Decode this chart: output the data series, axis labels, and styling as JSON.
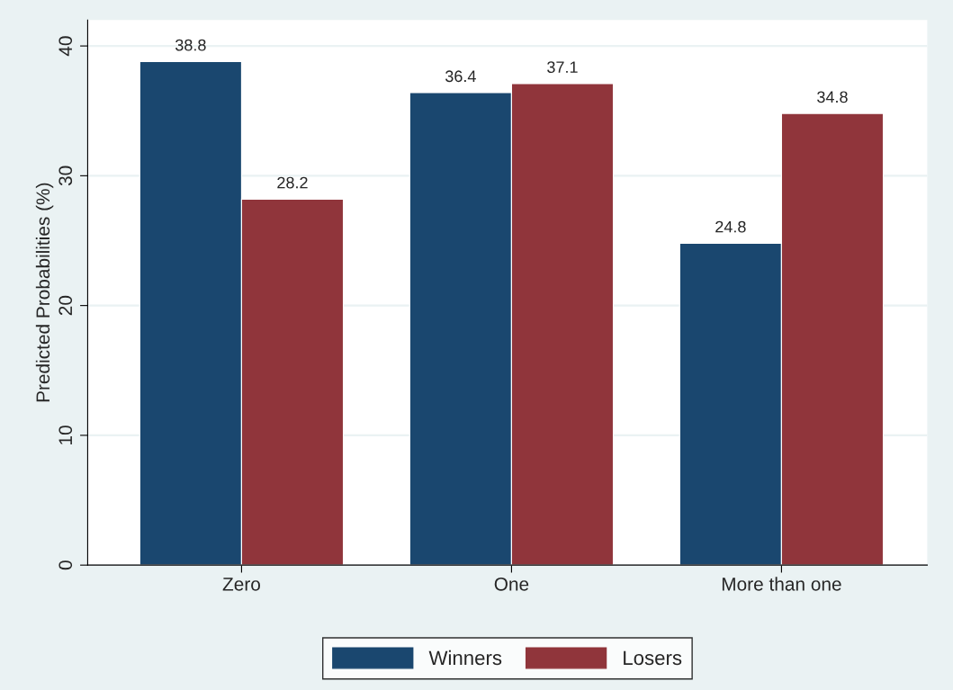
{
  "chart_data": {
    "type": "bar",
    "ylabel": "Predicted Probabilities (%)",
    "categories": [
      "Zero",
      "One",
      "More than one"
    ],
    "series": [
      {
        "name": "Winners",
        "color": "#1a476f",
        "values": [
          38.8,
          36.4,
          24.8
        ]
      },
      {
        "name": "Losers",
        "color": "#90353b",
        "values": [
          28.2,
          37.1,
          34.8
        ]
      }
    ],
    "ylim": [
      0,
      42
    ],
    "yticks": [
      0,
      10,
      20,
      30,
      40
    ],
    "grid": "y",
    "legend": "bottom",
    "data_labels": true
  }
}
